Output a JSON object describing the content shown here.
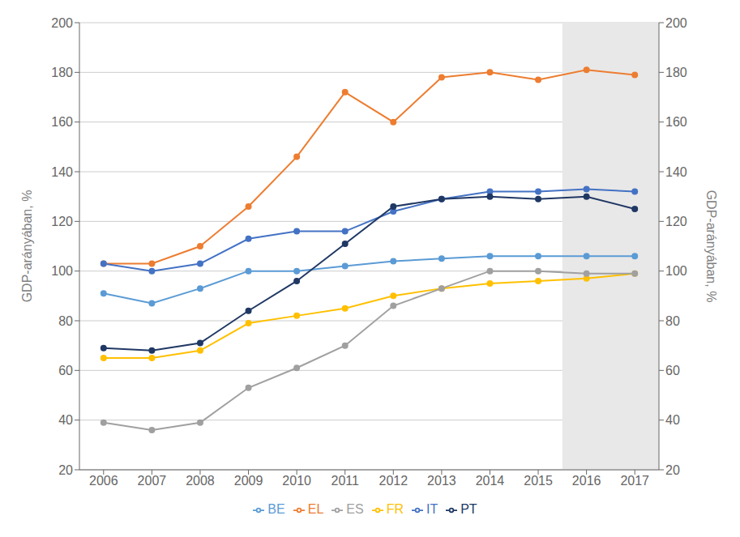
{
  "chart_data": {
    "type": "line",
    "ylabel": "GDP-arányában, %",
    "y2label": "GDP-arányában, %",
    "x": [
      2006,
      2007,
      2008,
      2009,
      2010,
      2011,
      2012,
      2013,
      2014,
      2015,
      2016,
      2017
    ],
    "xlim": [
      2005.5,
      2017.5
    ],
    "xticks": [
      2006,
      2007,
      2008,
      2009,
      2010,
      2011,
      2012,
      2013,
      2014,
      2015,
      2016,
      2017
    ],
    "ylim": [
      20,
      200
    ],
    "yticks": [
      20,
      40,
      60,
      80,
      100,
      120,
      140,
      160,
      180,
      200
    ],
    "y2lim": [
      20,
      200
    ],
    "y2ticks": [
      20,
      40,
      60,
      80,
      100,
      120,
      140,
      160,
      180,
      200
    ],
    "grid": "y",
    "legend": "bottom",
    "shade": {
      "x": [
        2015.5,
        2017.5
      ],
      "color": "#E8E8E8"
    },
    "series": [
      {
        "name": "BE",
        "color": "#5B9BD5",
        "marker": "circle",
        "values": [
          91,
          87,
          93,
          100,
          100,
          102,
          104,
          105,
          106,
          106,
          106,
          106
        ]
      },
      {
        "name": "EL",
        "color": "#ED7D31",
        "marker": "circle",
        "values": [
          103,
          103,
          110,
          126,
          146,
          172,
          160,
          178,
          180,
          177,
          181,
          179
        ]
      },
      {
        "name": "FR",
        "color": "#FFC000",
        "marker": "circle",
        "values": [
          65,
          65,
          68,
          79,
          82,
          85,
          90,
          93,
          95,
          96,
          97,
          99
        ]
      },
      {
        "name": "IT",
        "color": "#4472C4",
        "marker": "circle",
        "values": [
          103,
          100,
          103,
          113,
          116,
          116,
          124,
          129,
          132,
          132,
          133,
          132
        ]
      },
      {
        "name": "PT",
        "color": "#203864",
        "marker": "circle",
        "values": [
          69,
          68,
          71,
          84,
          96,
          111,
          126,
          129,
          130,
          129,
          130,
          125
        ]
      },
      {
        "name": "ES",
        "color": "#A0A0A0",
        "marker": "circle",
        "values": [
          39,
          36,
          39,
          53,
          61,
          70,
          86,
          93,
          100,
          100,
          99,
          99
        ]
      }
    ]
  }
}
